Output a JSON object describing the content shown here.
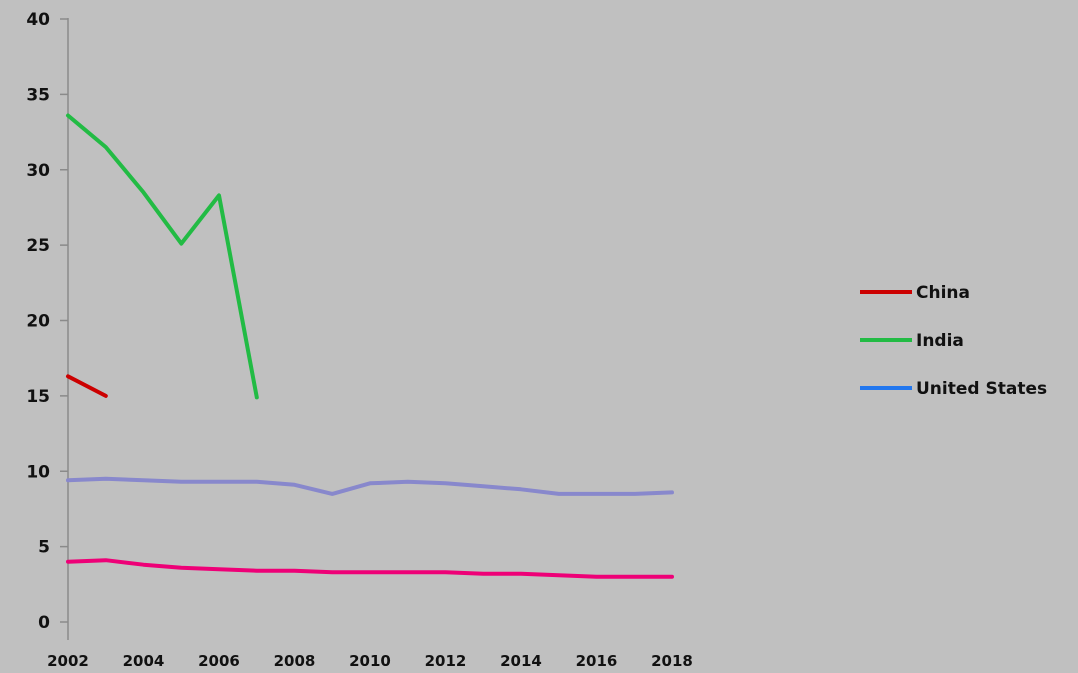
{
  "chart_data": {
    "type": "line",
    "title": "",
    "xlabel": "",
    "ylabel": "",
    "ylim": [
      0,
      40
    ],
    "yticks": [
      0,
      5,
      10,
      15,
      20,
      25,
      30,
      35,
      40
    ],
    "ytick_labels": [
      "0",
      "5",
      "10",
      "15",
      "20",
      "25",
      "30",
      "35",
      "40"
    ],
    "x": [
      2002,
      2003,
      2004,
      2005,
      2006,
      2007,
      2008,
      2009,
      2010,
      2011,
      2012,
      2013,
      2014,
      2015,
      2016,
      2017,
      2018
    ],
    "xtick_labels": [
      "2002",
      "2004",
      "2006",
      "2008",
      "2010",
      "2012",
      "2014",
      "2016",
      "2018"
    ],
    "grid": false,
    "legend_position": "right",
    "series": [
      {
        "name": "China",
        "color": "#cc0000",
        "values": [
          16.3,
          15.0,
          null,
          null,
          null,
          null,
          null,
          null,
          null,
          null,
          null,
          null,
          null,
          null,
          null,
          null,
          null
        ]
      },
      {
        "name": "India",
        "color": "#22bb44",
        "values": [
          33.6,
          31.5,
          28.5,
          25.1,
          28.3,
          14.9,
          null,
          null,
          null,
          null,
          null,
          null,
          null,
          null,
          null,
          null,
          null
        ]
      },
      {
        "name": "United States",
        "color": "#2277ee",
        "values": [
          null,
          null,
          null,
          null,
          null,
          null,
          null,
          null,
          null,
          null,
          null,
          null,
          null,
          null,
          null,
          null,
          null
        ]
      },
      {
        "name": "",
        "color": "#8888cc",
        "values": [
          9.4,
          9.5,
          9.4,
          9.3,
          9.3,
          9.3,
          9.1,
          8.5,
          9.2,
          9.3,
          9.2,
          9.0,
          8.8,
          8.5,
          8.5,
          8.5,
          8.6
        ]
      },
      {
        "name": "",
        "color": "#ee0077",
        "values": [
          4.0,
          4.1,
          3.8,
          3.6,
          3.5,
          3.4,
          3.4,
          3.3,
          3.3,
          3.3,
          3.3,
          3.2,
          3.2,
          3.1,
          3.0,
          3.0,
          3.0
        ]
      }
    ]
  }
}
